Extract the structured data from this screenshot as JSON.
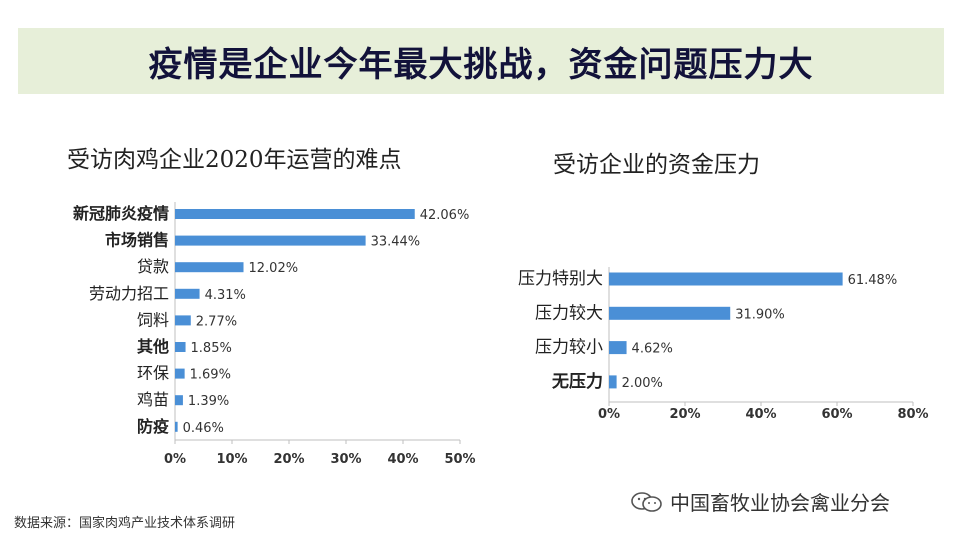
{
  "banner": {
    "title": "疫情是企业今年最大挑战，资金问题压力大"
  },
  "chart_data": [
    {
      "type": "bar",
      "orientation": "horizontal",
      "title": "受访肉鸡企业2020年运营的难点",
      "categories": [
        "新冠肺炎疫情",
        "市场销售",
        "贷款",
        "劳动力招工",
        "饲料",
        "其他",
        "环保",
        "鸡苗",
        "防疫"
      ],
      "values": [
        42.06,
        33.44,
        12.02,
        4.31,
        2.77,
        1.85,
        1.69,
        1.39,
        0.46
      ],
      "value_labels": [
        "42.06%",
        "33.44%",
        "12.02%",
        "4.31%",
        "2.77%",
        "1.85%",
        "1.69%",
        "1.39%",
        "0.46%"
      ],
      "bold_categories": [
        "新冠肺炎疫情",
        "市场销售",
        "其他",
        "防疫"
      ],
      "xlim": [
        0,
        50
      ],
      "xticks": [
        "0%",
        "10%",
        "20%",
        "30%",
        "40%",
        "50%"
      ],
      "bar_color": "#4a8fd6"
    },
    {
      "type": "bar",
      "orientation": "horizontal",
      "title": "受访企业的资金压力",
      "categories": [
        "压力特别大",
        "压力较大",
        "压力较小",
        "无压力"
      ],
      "values": [
        61.48,
        31.9,
        4.62,
        2.0
      ],
      "value_labels": [
        "61.48%",
        "31.90%",
        "4.62%",
        "2.00%"
      ],
      "bold_categories": [
        "无压力"
      ],
      "xlim": [
        0,
        80
      ],
      "xticks": [
        "0%",
        "20%",
        "40%",
        "60%",
        "80%"
      ],
      "bar_color": "#4a8fd6"
    }
  ],
  "footer": {
    "source": "数据来源：国家肉鸡产业技术体系调研",
    "watermark": "中国畜牧业协会禽业分会",
    "watermark_icon": "wechat-icon"
  }
}
